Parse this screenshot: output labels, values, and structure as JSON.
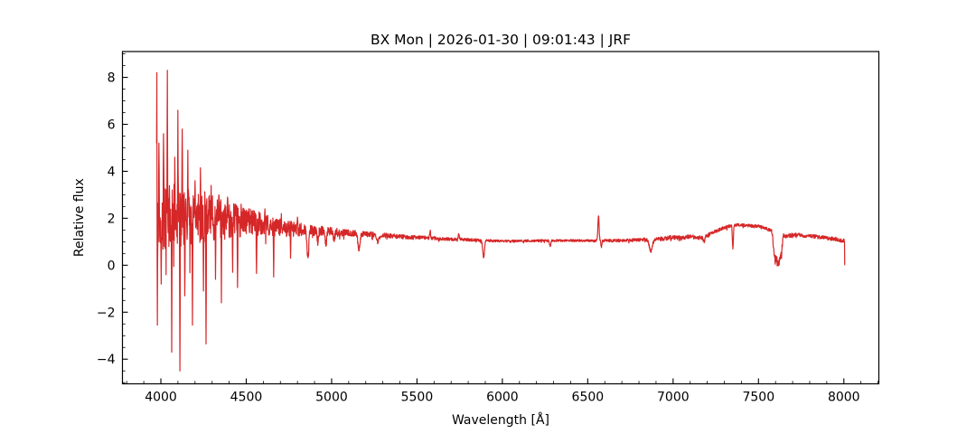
{
  "colors": {
    "line": "#d62728",
    "text": "#000000",
    "background": "#ffffff",
    "spine": "#000000"
  },
  "chart_data": {
    "type": "line",
    "title": "BX Mon | 2026-01-30 | 09:01:43 | JRF",
    "xlabel": "Wavelength [Å]",
    "ylabel": "Relative flux",
    "xlim": [
      3775,
      8205
    ],
    "ylim": [
      -5.05,
      9.1
    ],
    "grid": false,
    "legend": false,
    "x_ticks": {
      "values": [
        4000,
        4500,
        5000,
        5500,
        6000,
        6500,
        7000,
        7500,
        8000
      ],
      "labels": [
        "4000",
        "4500",
        "5000",
        "5500",
        "6000",
        "6500",
        "7000",
        "7500",
        "8000"
      ],
      "minor_step": 100
    },
    "y_ticks": {
      "values": [
        -4,
        -2,
        0,
        2,
        4,
        6,
        8
      ],
      "labels": [
        "−4",
        "−2",
        "0",
        "2",
        "4",
        "6",
        "8"
      ],
      "minor_step": 0.5
    },
    "series": [
      {
        "name": "spectrum",
        "color": "#d62728",
        "x_start": 3975,
        "x_end": 8005,
        "step": 1.5,
        "seed": 42,
        "end_value": 0.02,
        "continuum": [
          [
            3975,
            1.9
          ],
          [
            4050,
            2.0
          ],
          [
            4150,
            2.05
          ],
          [
            4250,
            2.05
          ],
          [
            4350,
            1.95
          ],
          [
            4450,
            1.88
          ],
          [
            4550,
            1.8
          ],
          [
            4650,
            1.68
          ],
          [
            4750,
            1.55
          ],
          [
            4850,
            1.5
          ],
          [
            4950,
            1.45
          ],
          [
            5050,
            1.4
          ],
          [
            5150,
            1.35
          ],
          [
            5250,
            1.3
          ],
          [
            5350,
            1.25
          ],
          [
            5450,
            1.2
          ],
          [
            5550,
            1.17
          ],
          [
            5650,
            1.12
          ],
          [
            5750,
            1.1
          ],
          [
            5850,
            1.07
          ],
          [
            5950,
            1.04
          ],
          [
            6050,
            1.02
          ],
          [
            6150,
            1.04
          ],
          [
            6250,
            1.05
          ],
          [
            6350,
            1.05
          ],
          [
            6450,
            1.05
          ],
          [
            6550,
            1.04
          ],
          [
            6650,
            1.05
          ],
          [
            6750,
            1.07
          ],
          [
            6850,
            1.1
          ],
          [
            6950,
            1.13
          ],
          [
            7000,
            1.2
          ],
          [
            7050,
            1.16
          ],
          [
            7100,
            1.22
          ],
          [
            7150,
            1.17
          ],
          [
            7200,
            1.26
          ],
          [
            7280,
            1.55
          ],
          [
            7350,
            1.73
          ],
          [
            7420,
            1.7
          ],
          [
            7500,
            1.66
          ],
          [
            7550,
            1.55
          ],
          [
            7590,
            1.42
          ],
          [
            7620,
            1.35
          ],
          [
            7660,
            1.25
          ],
          [
            7720,
            1.3
          ],
          [
            7780,
            1.26
          ],
          [
            7850,
            1.2
          ],
          [
            7950,
            1.12
          ],
          [
            8005,
            1.02
          ]
        ],
        "noise_envelope": [
          [
            3975,
            1.5
          ],
          [
            4100,
            1.45
          ],
          [
            4200,
            1.25
          ],
          [
            4300,
            1.0
          ],
          [
            4400,
            0.8
          ],
          [
            4500,
            0.6
          ],
          [
            4650,
            0.42
          ],
          [
            4800,
            0.3
          ],
          [
            4950,
            0.2
          ],
          [
            5100,
            0.14
          ],
          [
            5300,
            0.1
          ],
          [
            5500,
            0.08
          ],
          [
            5800,
            0.06
          ],
          [
            6100,
            0.05
          ],
          [
            6500,
            0.05
          ],
          [
            6800,
            0.07
          ],
          [
            7000,
            0.09
          ],
          [
            7150,
            0.09
          ],
          [
            7300,
            0.07
          ],
          [
            7500,
            0.06
          ],
          [
            7650,
            0.09
          ],
          [
            7800,
            0.08
          ],
          [
            8005,
            0.09
          ]
        ],
        "features": [
          {
            "center": 4861,
            "amp": -1.15,
            "width": 5,
            "shape": "gauss"
          },
          {
            "center": 4920,
            "amp": -0.45,
            "width": 4,
            "shape": "gauss"
          },
          {
            "center": 4967,
            "amp": -0.5,
            "width": 4,
            "shape": "gauss"
          },
          {
            "center": 5015,
            "amp": -0.35,
            "width": 4,
            "shape": "gauss"
          },
          {
            "center": 5160,
            "amp": -0.65,
            "width": 6,
            "shape": "gauss"
          },
          {
            "center": 5270,
            "amp": -0.3,
            "width": 5,
            "shape": "gauss"
          },
          {
            "center": 5577,
            "amp": 0.3,
            "width": 3,
            "shape": "gauss"
          },
          {
            "center": 5745,
            "amp": 0.22,
            "width": 3,
            "shape": "gauss"
          },
          {
            "center": 5890,
            "amp": -0.72,
            "width": 5,
            "shape": "gauss"
          },
          {
            "center": 6280,
            "amp": -0.25,
            "width": 4,
            "shape": "gauss"
          },
          {
            "center": 6563,
            "amp": 1.05,
            "width": 3.5,
            "shape": "gauss"
          },
          {
            "center": 6580,
            "amp": -0.25,
            "width": 3,
            "shape": "gauss"
          },
          {
            "center": 6870,
            "amp": -0.5,
            "width": 9,
            "shape": "gauss"
          },
          {
            "center": 7180,
            "amp": -0.2,
            "width": 6,
            "shape": "gauss"
          },
          {
            "center": 7350,
            "amp": -1.0,
            "width": 3,
            "shape": "gauss"
          },
          {
            "center": 7612,
            "amp": -1.1,
            "width": 27,
            "shape": "flat"
          }
        ],
        "spikes": [
          [
            3977,
            8.2
          ],
          [
            3980,
            -2.55
          ],
          [
            3989,
            5.2
          ],
          [
            4002,
            -0.8
          ],
          [
            4015,
            5.6
          ],
          [
            4038,
            8.3
          ],
          [
            4063,
            -3.7
          ],
          [
            4082,
            4.6
          ],
          [
            4100,
            6.6
          ],
          [
            4111,
            -4.5
          ],
          [
            4125,
            5.8
          ],
          [
            4140,
            -1.3
          ],
          [
            4158,
            4.9
          ],
          [
            4185,
            -2.55
          ],
          [
            4200,
            3.6
          ],
          [
            4232,
            4.15
          ],
          [
            4250,
            -1.1
          ],
          [
            4264,
            -3.35
          ],
          [
            4295,
            3.4
          ],
          [
            4320,
            -0.6
          ],
          [
            4340,
            3.0
          ],
          [
            4354,
            -1.6
          ],
          [
            4390,
            2.9
          ],
          [
            4420,
            -0.3
          ],
          [
            4449,
            -0.95
          ],
          [
            4470,
            2.6
          ],
          [
            4560,
            -0.35
          ],
          [
            4610,
            2.4
          ],
          [
            4660,
            -0.5
          ],
          [
            4705,
            2.2
          ],
          [
            4760,
            0.3
          ],
          [
            4800,
            2.05
          ]
        ]
      }
    ]
  }
}
